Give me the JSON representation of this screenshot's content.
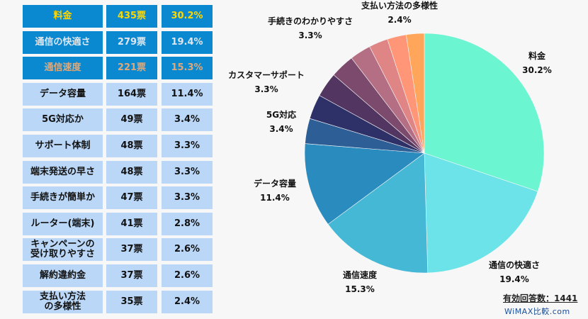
{
  "chart_data": {
    "type": "pie",
    "table_rows": [
      {
        "label": "料金",
        "votes": "435票",
        "pct": "30.2%",
        "style": "dark",
        "color": "#ffd700"
      },
      {
        "label": "通信の快適さ",
        "votes": "279票",
        "pct": "19.4%",
        "style": "dark",
        "color": "#dfe6ee"
      },
      {
        "label": "通信速度",
        "votes": "221票",
        "pct": "15.3%",
        "style": "dark",
        "color": "#e0a878"
      },
      {
        "label": "データ容量",
        "votes": "164票",
        "pct": "11.4%",
        "style": "light"
      },
      {
        "label": "5G対応か",
        "votes": "49票",
        "pct": "3.4%",
        "style": "light"
      },
      {
        "label": "サポート体制",
        "votes": "48票",
        "pct": "3.3%",
        "style": "light"
      },
      {
        "label": "端末発送の早さ",
        "votes": "48票",
        "pct": "3.3%",
        "style": "light"
      },
      {
        "label": "手続きが簡単か",
        "votes": "47票",
        "pct": "3.3%",
        "style": "light"
      },
      {
        "label": "ルーター(端末)",
        "votes": "41票",
        "pct": "2.8%",
        "style": "light"
      },
      {
        "label": "キャンペーンの\n受け取りやすさ",
        "votes": "37票",
        "pct": "2.6%",
        "style": "light"
      },
      {
        "label": "解約違約金",
        "votes": "37票",
        "pct": "2.6%",
        "style": "light"
      },
      {
        "label": "支払い方法\nの多様性",
        "votes": "35票",
        "pct": "2.4%",
        "style": "light"
      }
    ],
    "slices": [
      {
        "value": 435,
        "color": "#6bf5d0"
      },
      {
        "value": 279,
        "color": "#6ce3e8"
      },
      {
        "value": 221,
        "color": "#45b8d6"
      },
      {
        "value": 164,
        "color": "#2a8bbf"
      },
      {
        "value": 49,
        "color": "#2e5e96"
      },
      {
        "value": 48,
        "color": "#2e3168"
      },
      {
        "value": 48,
        "color": "#523560"
      },
      {
        "value": 47,
        "color": "#7c4a6c"
      },
      {
        "value": 41,
        "color": "#b56f85"
      },
      {
        "value": 37,
        "color": "#e08585"
      },
      {
        "value": 37,
        "color": "#ff9678"
      },
      {
        "value": 35,
        "color": "#ffa65a"
      }
    ],
    "pie_labels": [
      {
        "name": "料金",
        "pct": "30.2%"
      },
      {
        "name": "通信の快適さ",
        "pct": "19.4%"
      },
      {
        "name": "通信速度",
        "pct": "15.3%"
      },
      {
        "name": "データ容量",
        "pct": "11.4%"
      },
      {
        "name": "5G対応",
        "pct": "3.4%"
      },
      {
        "name": "カスタマーサポート",
        "pct": "3.3%"
      },
      {
        "name": "手続きのわかりやすさ",
        "pct": "3.3%"
      },
      {
        "name": "支払い方法の多様性",
        "pct": "2.4%"
      }
    ]
  },
  "total": "有効回答数：1441",
  "logo": "WiMAX比較.com"
}
